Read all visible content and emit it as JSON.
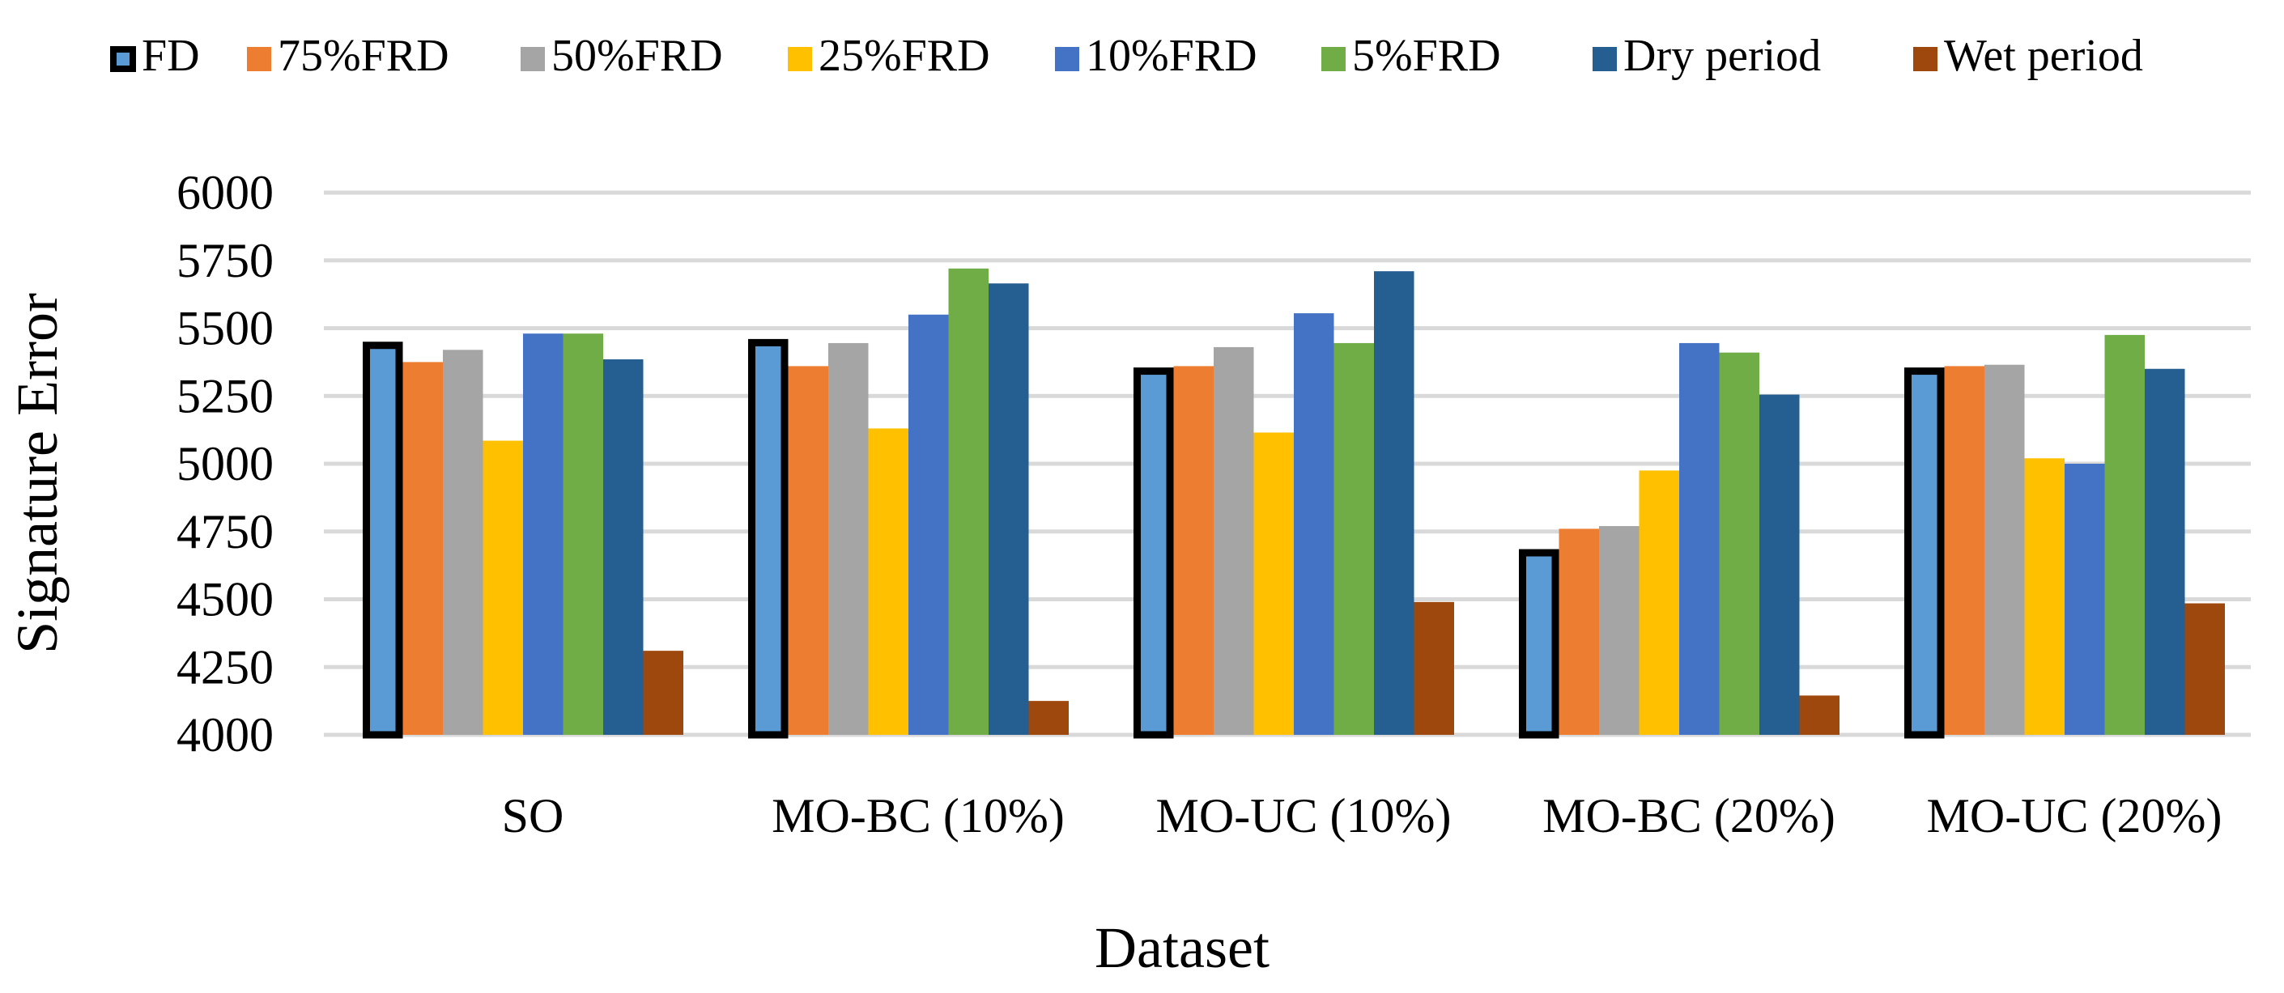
{
  "chart_data": {
    "type": "bar",
    "title": "",
    "xlabel": "Dataset",
    "ylabel": "Signature Error",
    "ylim": [
      4000,
      6000
    ],
    "yticks": [
      4000,
      4250,
      4500,
      4750,
      5000,
      5250,
      5500,
      5750,
      6000
    ],
    "grid": true,
    "legend_position": "top",
    "categories": [
      "SO",
      "MO-BC (10%)",
      "MO-UC (10%)",
      "MO-BC (20%)",
      "MO-UC (20%)"
    ],
    "series": [
      {
        "name": "FD",
        "color": "#5b9bd5",
        "outlined": true,
        "values": [
          5450,
          5460,
          5355,
          4685,
          5355
        ]
      },
      {
        "name": "75%FRD",
        "color": "#ed7d31",
        "values": [
          5375,
          5360,
          5360,
          4760,
          5360
        ]
      },
      {
        "name": "50%FRD",
        "color": "#a5a5a5",
        "values": [
          5420,
          5445,
          5430,
          4770,
          5365
        ]
      },
      {
        "name": "25%FRD",
        "color": "#ffc000",
        "values": [
          5085,
          5130,
          5115,
          4975,
          5020
        ]
      },
      {
        "name": "10%FRD",
        "color": "#4472c4",
        "values": [
          5480,
          5550,
          5555,
          5445,
          5000
        ]
      },
      {
        "name": "5%FRD",
        "color": "#70ad47",
        "values": [
          5480,
          5720,
          5445,
          5410,
          5475
        ]
      },
      {
        "name": "Dry period",
        "color": "#255e91",
        "values": [
          5385,
          5665,
          5710,
          5255,
          5350
        ]
      },
      {
        "name": "Wet period",
        "color": "#9e480e",
        "values": [
          4310,
          4125,
          4490,
          4145,
          4485
        ]
      }
    ]
  }
}
